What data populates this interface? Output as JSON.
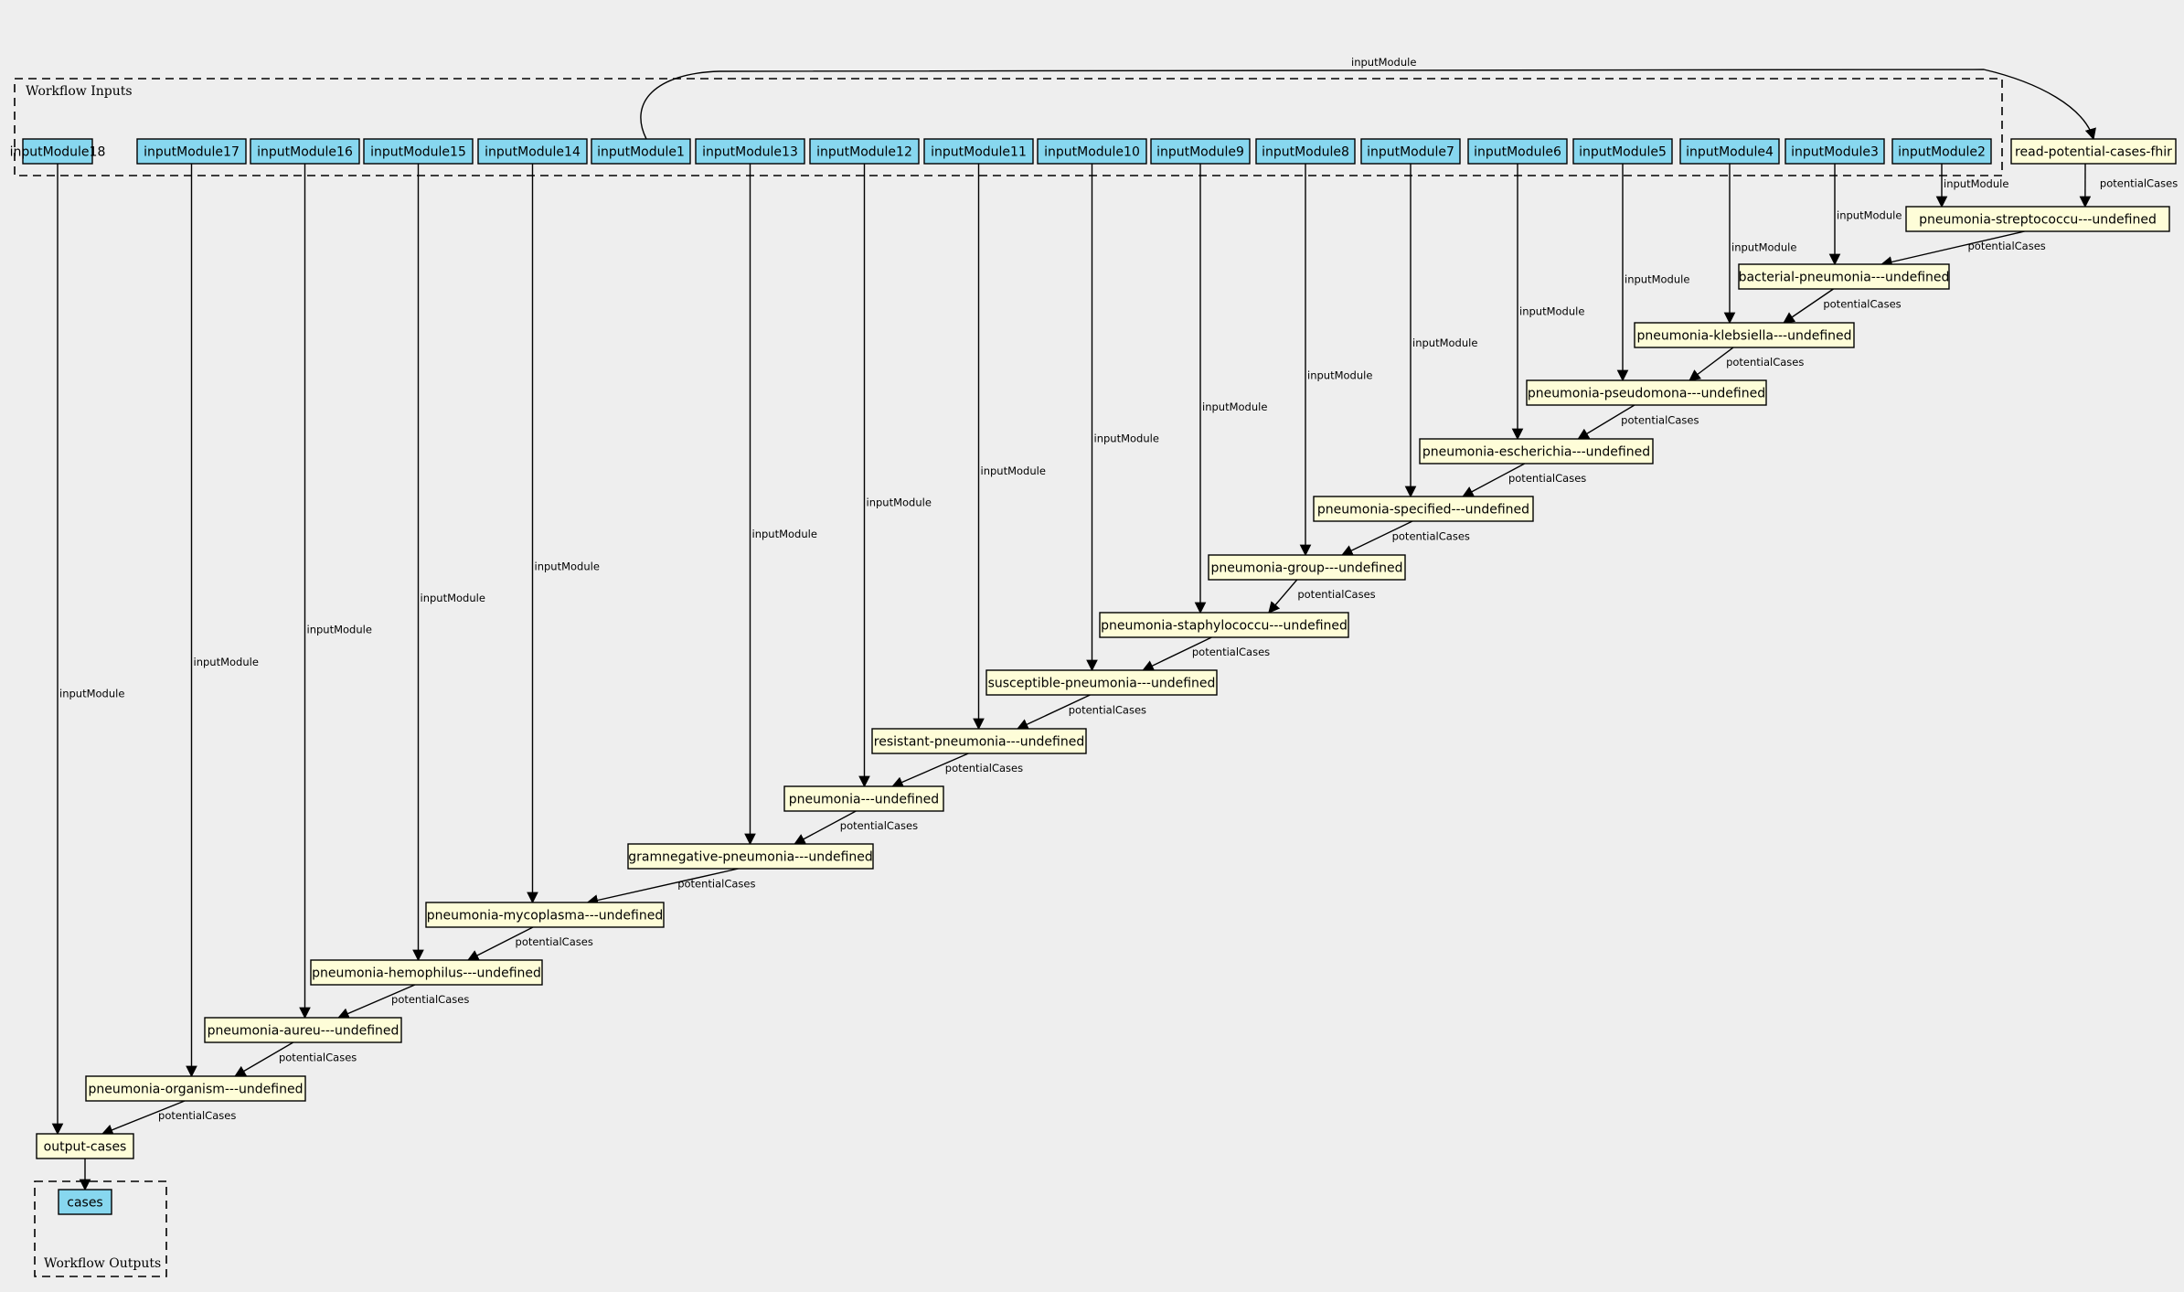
{
  "clusters": {
    "inputs_title": "Workflow Inputs",
    "outputs_title": "Workflow Outputs"
  },
  "inputs": [
    "inputModule18",
    "inputModule17",
    "inputModule16",
    "inputModule15",
    "inputModule14",
    "inputModule1",
    "inputModule13",
    "inputModule12",
    "inputModule11",
    "inputModule10",
    "inputModule9",
    "inputModule8",
    "inputModule7",
    "inputModule6",
    "inputModule5",
    "inputModule4",
    "inputModule3",
    "inputModule2"
  ],
  "steps": [
    "read-potential-cases-fhir",
    "pneumonia-streptococcu---undefined",
    "bacterial-pneumonia---undefined",
    "pneumonia-klebsiella---undefined",
    "pneumonia-pseudomona---undefined",
    "pneumonia-escherichia---undefined",
    "pneumonia-specified---undefined",
    "pneumonia-group---undefined",
    "pneumonia-staphylococcu---undefined",
    "susceptible-pneumonia---undefined",
    "resistant-pneumonia---undefined",
    "pneumonia---undefined",
    "gramnegative-pneumonia---undefined",
    "pneumonia-mycoplasma---undefined",
    "pneumonia-hemophilus---undefined",
    "pneumonia-aureu---undefined",
    "pneumonia-organism---undefined",
    "output-cases"
  ],
  "outputs": [
    "cases"
  ],
  "edges": [
    {
      "from": "inputModule1",
      "to": "read-potential-cases-fhir",
      "label": "inputModule"
    },
    {
      "from": "inputModule2",
      "to": "pneumonia-streptococcu---undefined",
      "label": "inputModule"
    },
    {
      "from": "read-potential-cases-fhir",
      "to": "pneumonia-streptococcu---undefined",
      "label": "potentialCases"
    },
    {
      "from": "inputModule3",
      "to": "bacterial-pneumonia---undefined",
      "label": "inputModule"
    },
    {
      "from": "pneumonia-streptococcu---undefined",
      "to": "bacterial-pneumonia---undefined",
      "label": "potentialCases"
    },
    {
      "from": "inputModule4",
      "to": "pneumonia-klebsiella---undefined",
      "label": "inputModule"
    },
    {
      "from": "bacterial-pneumonia---undefined",
      "to": "pneumonia-klebsiella---undefined",
      "label": "potentialCases"
    },
    {
      "from": "inputModule5",
      "to": "pneumonia-pseudomona---undefined",
      "label": "inputModule"
    },
    {
      "from": "pneumonia-klebsiella---undefined",
      "to": "pneumonia-pseudomona---undefined",
      "label": "potentialCases"
    },
    {
      "from": "inputModule6",
      "to": "pneumonia-escherichia---undefined",
      "label": "inputModule"
    },
    {
      "from": "pneumonia-pseudomona---undefined",
      "to": "pneumonia-escherichia---undefined",
      "label": "potentialCases"
    },
    {
      "from": "inputModule7",
      "to": "pneumonia-specified---undefined",
      "label": "inputModule"
    },
    {
      "from": "pneumonia-escherichia---undefined",
      "to": "pneumonia-specified---undefined",
      "label": "potentialCases"
    },
    {
      "from": "inputModule8",
      "to": "pneumonia-group---undefined",
      "label": "inputModule"
    },
    {
      "from": "pneumonia-specified---undefined",
      "to": "pneumonia-group---undefined",
      "label": "potentialCases"
    },
    {
      "from": "inputModule9",
      "to": "pneumonia-staphylococcu---undefined",
      "label": "inputModule"
    },
    {
      "from": "pneumonia-group---undefined",
      "to": "pneumonia-staphylococcu---undefined",
      "label": "potentialCases"
    },
    {
      "from": "inputModule10",
      "to": "susceptible-pneumonia---undefined",
      "label": "inputModule"
    },
    {
      "from": "pneumonia-staphylococcu---undefined",
      "to": "susceptible-pneumonia---undefined",
      "label": "potentialCases"
    },
    {
      "from": "inputModule11",
      "to": "resistant-pneumonia---undefined",
      "label": "inputModule"
    },
    {
      "from": "susceptible-pneumonia---undefined",
      "to": "resistant-pneumonia---undefined",
      "label": "potentialCases"
    },
    {
      "from": "inputModule12",
      "to": "pneumonia---undefined",
      "label": "inputModule"
    },
    {
      "from": "resistant-pneumonia---undefined",
      "to": "pneumonia---undefined",
      "label": "potentialCases"
    },
    {
      "from": "inputModule13",
      "to": "gramnegative-pneumonia---undefined",
      "label": "inputModule"
    },
    {
      "from": "pneumonia---undefined",
      "to": "gramnegative-pneumonia---undefined",
      "label": "potentialCases"
    },
    {
      "from": "inputModule14",
      "to": "pneumonia-mycoplasma---undefined",
      "label": "inputModule"
    },
    {
      "from": "gramnegative-pneumonia---undefined",
      "to": "pneumonia-mycoplasma---undefined",
      "label": "potentialCases"
    },
    {
      "from": "inputModule15",
      "to": "pneumonia-hemophilus---undefined",
      "label": "inputModule"
    },
    {
      "from": "pneumonia-mycoplasma---undefined",
      "to": "pneumonia-hemophilus---undefined",
      "label": "potentialCases"
    },
    {
      "from": "inputModule16",
      "to": "pneumonia-aureu---undefined",
      "label": "inputModule"
    },
    {
      "from": "pneumonia-hemophilus---undefined",
      "to": "pneumonia-aureu---undefined",
      "label": "potentialCases"
    },
    {
      "from": "inputModule17",
      "to": "pneumonia-organism---undefined",
      "label": "inputModule"
    },
    {
      "from": "pneumonia-aureu---undefined",
      "to": "pneumonia-organism---undefined",
      "label": "potentialCases"
    },
    {
      "from": "inputModule18",
      "to": "output-cases",
      "label": "inputModule"
    },
    {
      "from": "pneumonia-organism---undefined",
      "to": "output-cases",
      "label": "potentialCases"
    },
    {
      "from": "output-cases",
      "to": "cases",
      "label": ""
    }
  ]
}
